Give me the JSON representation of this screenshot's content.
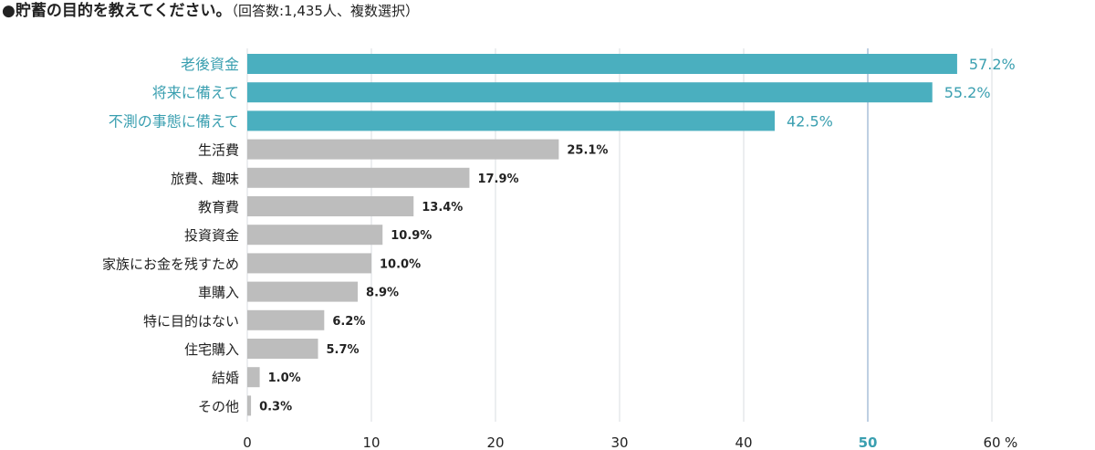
{
  "title": "●貯蓄の目的を教えてください。",
  "subtitle": "（回答数:1,435人、複数選択）",
  "colors": {
    "highlight": "#4aafbf",
    "normal": "#bdbdbd",
    "highlight_text": "#3a9fb0",
    "grid": "#d9dde1",
    "highlight_grid": "#a8bfd9",
    "axis_text": "#222222"
  },
  "chart_data": {
    "type": "bar",
    "orientation": "horizontal",
    "categories": [
      "老後資金",
      "将来に備えて",
      "不測の事態に備えて",
      "生活費",
      "旅費、趣味",
      "教育費",
      "投資資金",
      "家族にお金を残すため",
      "車購入",
      "特に目的はない",
      "住宅購入",
      "結婚",
      "その他"
    ],
    "values": [
      57.2,
      55.2,
      42.5,
      25.1,
      17.9,
      13.4,
      10.9,
      10.0,
      8.9,
      6.2,
      5.7,
      1.0,
      0.3
    ],
    "value_labels": [
      "57.2%",
      "55.2%",
      "42.5%",
      "25.1%",
      "17.9%",
      "13.4%",
      "10.9%",
      "10.0%",
      "8.9%",
      "6.2%",
      "5.7%",
      "1.0%",
      "0.3%"
    ],
    "highlighted": [
      true,
      true,
      true,
      false,
      false,
      false,
      false,
      false,
      false,
      false,
      false,
      false,
      false
    ],
    "xlim": [
      0,
      60
    ],
    "xticks": [
      0,
      10,
      20,
      30,
      40,
      50,
      60
    ],
    "xtick_labels": [
      "0",
      "10",
      "20",
      "30",
      "40",
      "50",
      "60"
    ],
    "highlight_tick": 50,
    "unit_label": "%",
    "grid": true
  }
}
